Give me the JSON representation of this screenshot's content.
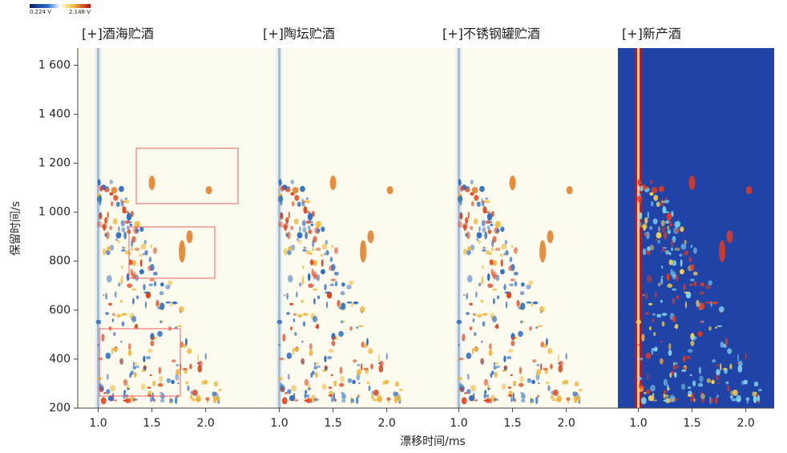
{
  "chart_data": {
    "type": "heatmap",
    "panels": [
      "[+]酒海贮酒",
      "[+]陶坛贮酒",
      "[+]不锈钢罐贮酒",
      "[+]新产酒"
    ],
    "x_label": "漂移时间/ms",
    "y_label": "保留时间/s",
    "xlim": [
      0.81,
      2.48
    ],
    "xticks": [
      {
        "value": 1,
        "label": "1.0"
      },
      1.5,
      {
        "value": 2,
        "label": "2.0"
      }
    ],
    "ylim": [
      200,
      1670
    ],
    "yticks": [
      200,
      400,
      600,
      800,
      {
        "value": 1000,
        "label": "1 000"
      },
      {
        "value": 1200,
        "label": "1 200"
      },
      {
        "value": 1400,
        "label": "1 400"
      },
      {
        "value": 1600,
        "label": "1 600"
      }
    ],
    "clim": [
      0.224,
      2.148
    ],
    "colorbar_ticks": [
      {
        "value": 0.224,
        "label": "0.224 V"
      },
      {
        "value": 2.148,
        "label": "2.148 V"
      }
    ]
  }
}
